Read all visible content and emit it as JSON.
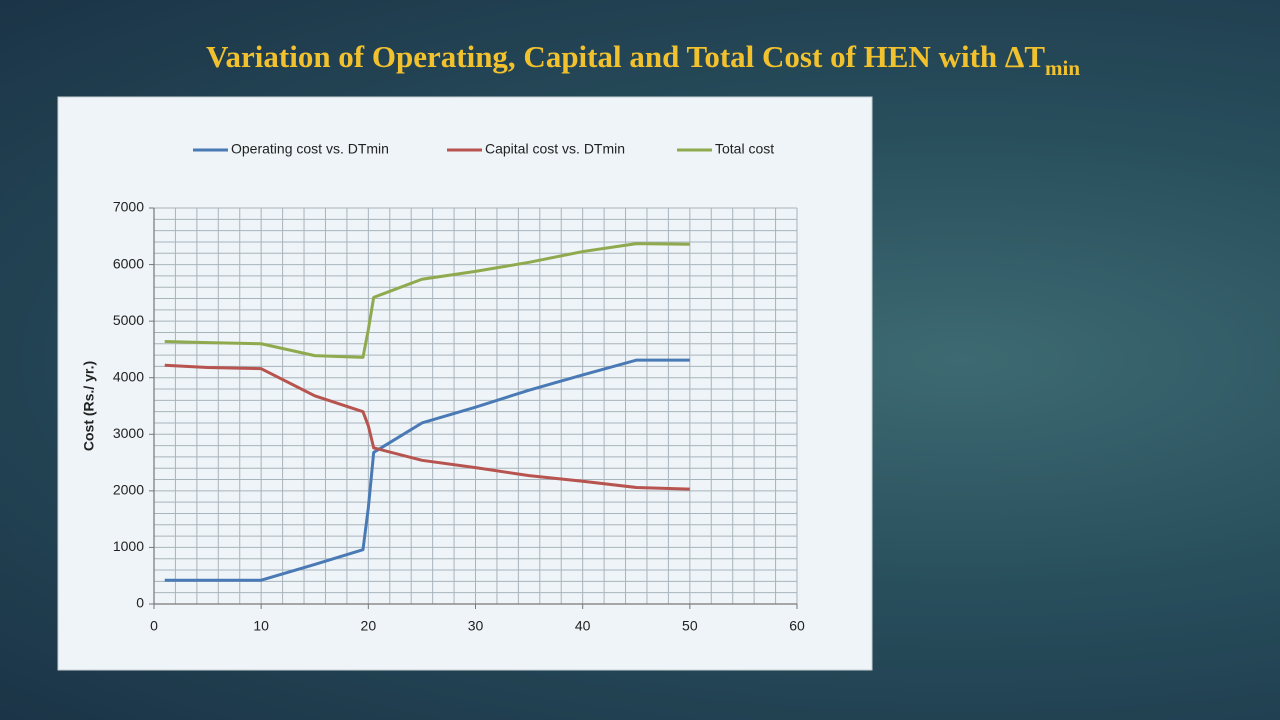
{
  "chart_data": {
    "type": "line",
    "title": "Variation of Operating, Capital and Total Cost of HEN with ΔT",
    "title_subscript": "min",
    "y_label": "Cost (Rs./ yr.)",
    "x": [
      1,
      5,
      10,
      15,
      19.5,
      20,
      20.5,
      25,
      30,
      35,
      40,
      45,
      50
    ],
    "series": [
      {
        "name": "Operating cost vs. DTmin",
        "color": "#4a7ab5",
        "values": [
          420,
          420,
          420,
          700,
          960,
          1700,
          2680,
          3200,
          3480,
          3780,
          4050,
          4310,
          4310
        ]
      },
      {
        "name": "Capital cost vs. DTmin",
        "color": "#b85450",
        "values": [
          4220,
          4180,
          4160,
          3680,
          3400,
          3150,
          2760,
          2540,
          2410,
          2270,
          2170,
          2060,
          2030
        ]
      },
      {
        "name": "Total cost",
        "color": "#8faa4e",
        "values": [
          4640,
          4620,
          4600,
          4390,
          4360,
          4850,
          5420,
          5740,
          5880,
          6040,
          6230,
          6370,
          6360
        ]
      }
    ],
    "xlim": [
      0,
      60
    ],
    "ylim": [
      0,
      7000
    ],
    "xticks": [
      0,
      10,
      20,
      30,
      40,
      50,
      60
    ],
    "yticks": [
      0,
      1000,
      2000,
      3000,
      4000,
      5000,
      6000,
      7000
    ],
    "xgrid": [
      0,
      2,
      4,
      6,
      8,
      10,
      12,
      14,
      16,
      18,
      20,
      22,
      24,
      26,
      28,
      30,
      32,
      34,
      36,
      38,
      40,
      42,
      44,
      46,
      48,
      50,
      52,
      54,
      56,
      58,
      60
    ],
    "ygrid": [
      0,
      200,
      400,
      600,
      800,
      1000,
      1200,
      1400,
      1600,
      1800,
      2000,
      2200,
      2400,
      2600,
      2800,
      3000,
      3200,
      3400,
      3600,
      3800,
      4000,
      4200,
      4400,
      4600,
      4800,
      5000,
      5200,
      5400,
      5600,
      5800,
      6000,
      6200,
      6400,
      6600,
      6800,
      7000
    ],
    "legend": "top",
    "grid": true
  }
}
